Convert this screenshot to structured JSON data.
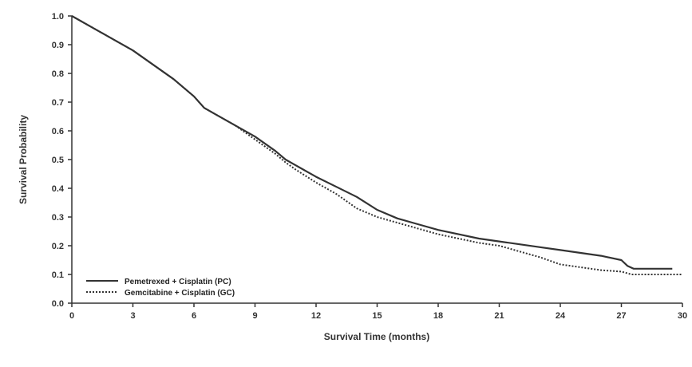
{
  "chart_data": {
    "type": "line",
    "title": "",
    "xlabel": "Survival Time (months)",
    "ylabel": "Survival Probability",
    "xlim": [
      0,
      30
    ],
    "ylim": [
      0,
      1.0
    ],
    "x_ticks": [
      "0",
      "3",
      "6",
      "9",
      "12",
      "15",
      "18",
      "21",
      "24",
      "27",
      "30"
    ],
    "y_ticks": [
      "0.0",
      "0.1",
      "0.2",
      "0.3",
      "0.4",
      "0.5",
      "0.6",
      "0.7",
      "0.8",
      "0.9",
      "1.0"
    ],
    "grid": false,
    "legend_position": "bottom-left",
    "series": [
      {
        "name": "Pemetrexed + Cisplatin (PC)",
        "style": "solid",
        "color": "#333333",
        "points": [
          [
            0,
            1.0
          ],
          [
            1,
            0.96
          ],
          [
            2,
            0.92
          ],
          [
            3,
            0.88
          ],
          [
            4,
            0.83
          ],
          [
            5,
            0.78
          ],
          [
            6,
            0.72
          ],
          [
            6.5,
            0.68
          ],
          [
            7,
            0.66
          ],
          [
            8,
            0.62
          ],
          [
            9,
            0.58
          ],
          [
            10,
            0.53
          ],
          [
            10.5,
            0.5
          ],
          [
            11,
            0.48
          ],
          [
            12,
            0.44
          ],
          [
            13,
            0.405
          ],
          [
            14,
            0.37
          ],
          [
            15,
            0.325
          ],
          [
            16,
            0.295
          ],
          [
            17,
            0.275
          ],
          [
            18,
            0.255
          ],
          [
            19,
            0.24
          ],
          [
            20,
            0.225
          ],
          [
            21,
            0.215
          ],
          [
            22,
            0.205
          ],
          [
            23,
            0.195
          ],
          [
            24,
            0.185
          ],
          [
            25,
            0.175
          ],
          [
            26,
            0.165
          ],
          [
            27,
            0.15
          ],
          [
            27.3,
            0.13
          ],
          [
            27.6,
            0.12
          ],
          [
            28.5,
            0.12
          ],
          [
            29.5,
            0.12
          ]
        ]
      },
      {
        "name": "Gemcitabine + Cisplatin (GC)",
        "style": "dotted",
        "color": "#333333",
        "points": [
          [
            0,
            1.0
          ],
          [
            1,
            0.96
          ],
          [
            2,
            0.92
          ],
          [
            3,
            0.88
          ],
          [
            4,
            0.83
          ],
          [
            5,
            0.78
          ],
          [
            6,
            0.72
          ],
          [
            6.5,
            0.68
          ],
          [
            7,
            0.66
          ],
          [
            8,
            0.62
          ],
          [
            9,
            0.57
          ],
          [
            10,
            0.52
          ],
          [
            10.5,
            0.49
          ],
          [
            11,
            0.465
          ],
          [
            12,
            0.42
          ],
          [
            13,
            0.38
          ],
          [
            14,
            0.33
          ],
          [
            15,
            0.3
          ],
          [
            16,
            0.28
          ],
          [
            17,
            0.26
          ],
          [
            18,
            0.24
          ],
          [
            19,
            0.225
          ],
          [
            20,
            0.21
          ],
          [
            21,
            0.2
          ],
          [
            22,
            0.18
          ],
          [
            23,
            0.16
          ],
          [
            24,
            0.135
          ],
          [
            25,
            0.125
          ],
          [
            26,
            0.115
          ],
          [
            27,
            0.11
          ],
          [
            27.5,
            0.1
          ],
          [
            28.5,
            0.1
          ],
          [
            30,
            0.1
          ]
        ]
      }
    ]
  }
}
